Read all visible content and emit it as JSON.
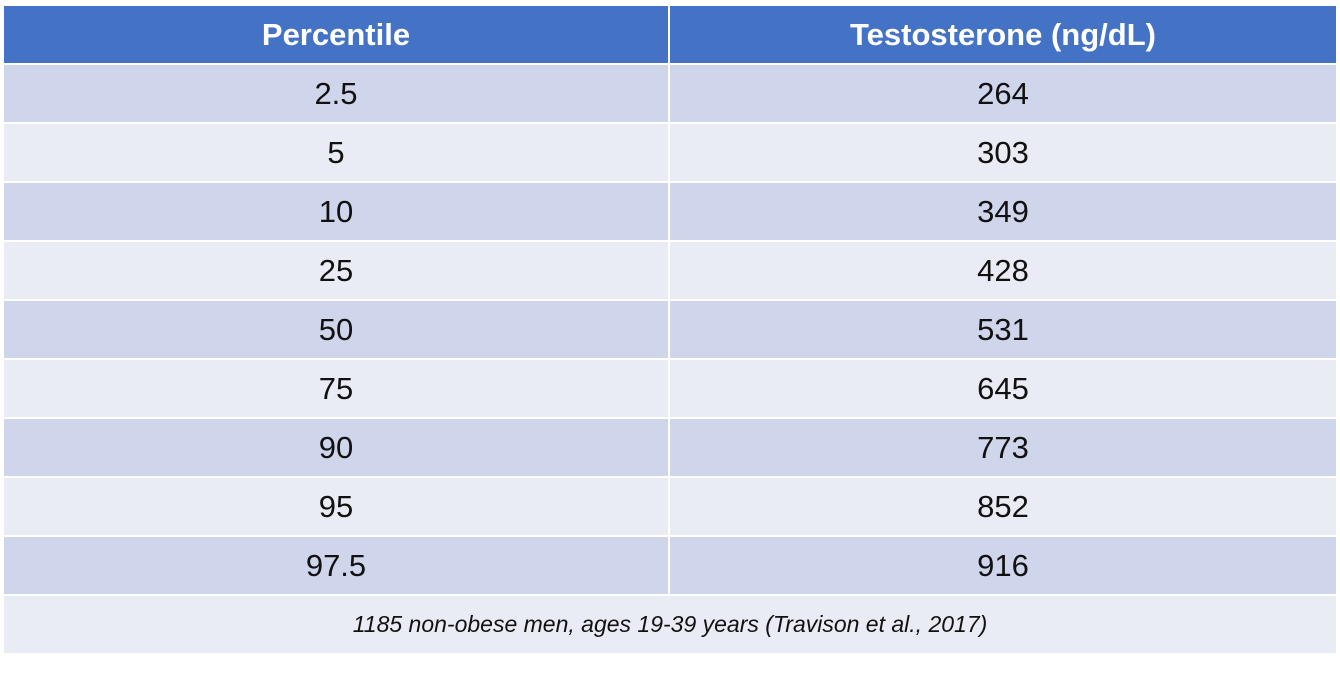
{
  "table": {
    "headers": [
      "Percentile",
      "Testosterone (ng/dL)"
    ],
    "rows": [
      [
        "2.5",
        "264"
      ],
      [
        "5",
        "303"
      ],
      [
        "10",
        "349"
      ],
      [
        "25",
        "428"
      ],
      [
        "50",
        "531"
      ],
      [
        "75",
        "645"
      ],
      [
        "90",
        "773"
      ],
      [
        "95",
        "852"
      ],
      [
        "97.5",
        "916"
      ]
    ],
    "footnote": "1185 non-obese men, ages 19-39 years (Travison et al., 2017)"
  },
  "colors": {
    "header_bg": "#4472c4",
    "row_band_dark": "#cfd5ea",
    "row_band_light": "#e9ebf5"
  }
}
